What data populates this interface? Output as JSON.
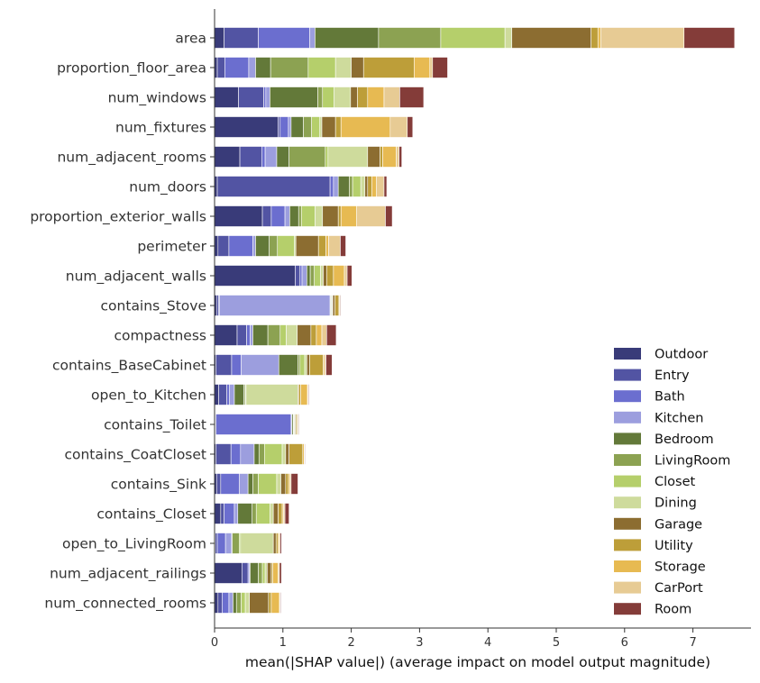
{
  "chart_data": {
    "type": "bar",
    "orientation": "horizontal",
    "stacked": true,
    "title": "",
    "xlabel": "mean(|SHAP value|) (average impact on model output magnitude)",
    "ylabel": "",
    "xlim": [
      0,
      7.85
    ],
    "xticks": [
      0,
      1,
      2,
      3,
      4,
      5,
      6,
      7
    ],
    "grid": false,
    "legend_position": "lower-right",
    "categories": [
      "area",
      "proportion_floor_area",
      "num_windows",
      "num_fixtures",
      "num_adjacent_rooms",
      "num_doors",
      "proportion_exterior_walls",
      "perimeter",
      "num_adjacent_walls",
      "contains_Stove",
      "compactness",
      "contains_BaseCabinet",
      "open_to_Kitchen",
      "contains_Toilet",
      "contains_CoatCloset",
      "contains_Sink",
      "contains_Closet",
      "open_to_LivingRoom",
      "num_adjacent_railings",
      "num_connected_rooms"
    ],
    "series": [
      {
        "name": "Outdoor",
        "color": "#393b79",
        "values": [
          0.14,
          0.04,
          0.35,
          0.93,
          0.37,
          0.04,
          0.7,
          0.05,
          1.18,
          0.03,
          0.33,
          0.02,
          0.06,
          0.01,
          0.02,
          0.03,
          0.09,
          0.01,
          0.4,
          0.05
        ]
      },
      {
        "name": "Entry",
        "color": "#5254a3",
        "values": [
          0.5,
          0.11,
          0.37,
          0.03,
          0.32,
          1.65,
          0.13,
          0.16,
          0.07,
          0.03,
          0.14,
          0.23,
          0.12,
          0.01,
          0.22,
          0.06,
          0.05,
          0.03,
          0.09,
          0.06
        ]
      },
      {
        "name": "Bath",
        "color": "#6b6ecf",
        "values": [
          0.75,
          0.35,
          0.03,
          0.12,
          0.05,
          0.05,
          0.2,
          0.35,
          0.03,
          0.01,
          0.05,
          0.14,
          0.04,
          1.1,
          0.14,
          0.27,
          0.15,
          0.12,
          0.02,
          0.1
        ]
      },
      {
        "name": "Kitchen",
        "color": "#9c9ede",
        "values": [
          0.08,
          0.1,
          0.06,
          0.04,
          0.17,
          0.07,
          0.07,
          0.04,
          0.07,
          1.62,
          0.04,
          0.55,
          0.07,
          0.01,
          0.2,
          0.13,
          0.05,
          0.09,
          0.01,
          0.06
        ]
      },
      {
        "name": "Bedroom",
        "color": "#637939",
        "values": [
          0.93,
          0.22,
          0.7,
          0.18,
          0.18,
          0.16,
          0.13,
          0.2,
          0.05,
          0.01,
          0.22,
          0.28,
          0.14,
          0.02,
          0.07,
          0.07,
          0.21,
          0.01,
          0.12,
          0.05
        ]
      },
      {
        "name": "LivingRoom",
        "color": "#8ca252",
        "values": [
          0.91,
          0.55,
          0.07,
          0.12,
          0.53,
          0.05,
          0.04,
          0.12,
          0.06,
          0.01,
          0.18,
          0.03,
          0.02,
          0.01,
          0.08,
          0.08,
          0.06,
          0.1,
          0.06,
          0.07
        ]
      },
      {
        "name": "Closet",
        "color": "#b5cf6b",
        "values": [
          0.94,
          0.4,
          0.17,
          0.12,
          0.04,
          0.12,
          0.2,
          0.25,
          0.09,
          0.01,
          0.09,
          0.07,
          0.01,
          0.01,
          0.26,
          0.27,
          0.2,
          0.02,
          0.04,
          0.06
        ]
      },
      {
        "name": "Dining",
        "color": "#cedb9c",
        "values": [
          0.1,
          0.23,
          0.24,
          0.03,
          0.58,
          0.06,
          0.11,
          0.02,
          0.04,
          0.01,
          0.16,
          0.03,
          0.76,
          0.01,
          0.05,
          0.06,
          0.05,
          0.48,
          0.03,
          0.06
        ]
      },
      {
        "name": "Garage",
        "color": "#8c6d31",
        "values": [
          1.16,
          0.18,
          0.1,
          0.2,
          0.18,
          0.04,
          0.23,
          0.33,
          0.05,
          0.03,
          0.2,
          0.04,
          0.01,
          0.01,
          0.05,
          0.07,
          0.07,
          0.04,
          0.06,
          0.28
        ]
      },
      {
        "name": "Utility",
        "color": "#bd9e39",
        "values": [
          0.1,
          0.74,
          0.15,
          0.08,
          0.04,
          0.06,
          0.04,
          0.11,
          0.1,
          0.06,
          0.08,
          0.2,
          0.03,
          0.02,
          0.2,
          0.04,
          0.06,
          0.03,
          0.02,
          0.04
        ]
      },
      {
        "name": "Storage",
        "color": "#e7ba52",
        "values": [
          0.04,
          0.23,
          0.24,
          0.72,
          0.2,
          0.07,
          0.23,
          0.04,
          0.16,
          0.01,
          0.08,
          0.02,
          0.1,
          0.01,
          0.02,
          0.02,
          0.02,
          0.02,
          0.08,
          0.12
        ]
      },
      {
        "name": "CarPort",
        "color": "#e7cb94",
        "values": [
          1.22,
          0.04,
          0.23,
          0.25,
          0.04,
          0.11,
          0.42,
          0.17,
          0.04,
          0.01,
          0.07,
          0.02,
          0.01,
          0.01,
          0.01,
          0.02,
          0.02,
          0.01,
          0.02,
          0.01
        ]
      },
      {
        "name": "Room",
        "color": "#843c39",
        "values": [
          0.74,
          0.22,
          0.35,
          0.08,
          0.04,
          0.04,
          0.1,
          0.08,
          0.07,
          0.01,
          0.14,
          0.09,
          0.01,
          0.01,
          0.01,
          0.1,
          0.06,
          0.02,
          0.03,
          0.01
        ]
      }
    ]
  }
}
